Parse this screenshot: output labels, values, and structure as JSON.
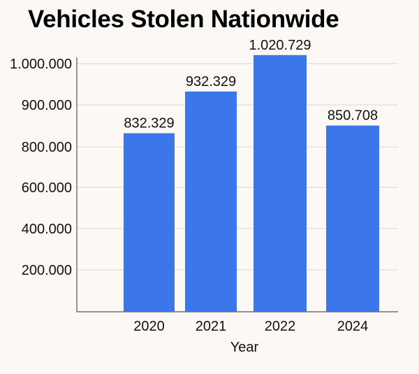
{
  "chart_data": {
    "type": "bar",
    "title": "Vehicles Stolen Nationwide",
    "xlabel": "Year",
    "ylabel": "",
    "categories": [
      "2020",
      "2021",
      "2022",
      "2024"
    ],
    "values": [
      832329,
      932329,
      1020729,
      850708
    ],
    "value_labels": [
      "832.329",
      "932.329",
      "1.020.729",
      "850.708"
    ],
    "y_ticks": [
      {
        "value": 200000,
        "label": "200.000"
      },
      {
        "value": 400000,
        "label": "400.000"
      },
      {
        "value": 600000,
        "label": "600.000"
      },
      {
        "value": 800000,
        "label": "800.000"
      },
      {
        "value": 900000,
        "label": "900.000"
      },
      {
        "value": 1000000,
        "label": "1.000.000"
      }
    ],
    "ylim": [
      0,
      1000000
    ],
    "grid": true,
    "legend": "none",
    "bar_color": "#3b77eb"
  }
}
